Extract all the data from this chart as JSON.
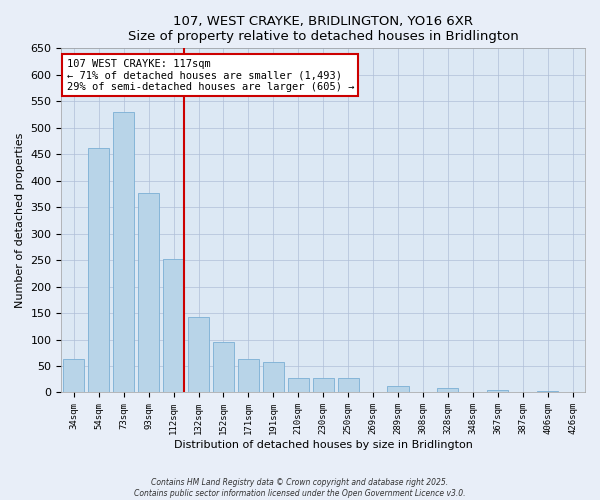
{
  "title": "107, WEST CRAYKE, BRIDLINGTON, YO16 6XR",
  "subtitle": "Size of property relative to detached houses in Bridlington",
  "xlabel": "Distribution of detached houses by size in Bridlington",
  "ylabel": "Number of detached properties",
  "bar_labels": [
    "34sqm",
    "54sqm",
    "73sqm",
    "93sqm",
    "112sqm",
    "132sqm",
    "152sqm",
    "171sqm",
    "191sqm",
    "210sqm",
    "230sqm",
    "250sqm",
    "269sqm",
    "289sqm",
    "308sqm",
    "328sqm",
    "348sqm",
    "367sqm",
    "387sqm",
    "406sqm",
    "426sqm"
  ],
  "bar_values": [
    63,
    462,
    530,
    376,
    252,
    143,
    95,
    64,
    58,
    27,
    27,
    27,
    0,
    12,
    0,
    8,
    0,
    5,
    0,
    3,
    0
  ],
  "bar_color": "#b8d4e8",
  "bar_edge_color": "#7bafd4",
  "vline_x_index": 4,
  "vline_color": "#cc0000",
  "annotation_title": "107 WEST CRAYKE: 117sqm",
  "annotation_line1": "← 71% of detached houses are smaller (1,493)",
  "annotation_line2": "29% of semi-detached houses are larger (605) →",
  "annotation_box_color": "#ffffff",
  "annotation_box_edge": "#cc0000",
  "ylim": [
    0,
    650
  ],
  "yticks": [
    0,
    50,
    100,
    150,
    200,
    250,
    300,
    350,
    400,
    450,
    500,
    550,
    600,
    650
  ],
  "footer1": "Contains HM Land Registry data © Crown copyright and database right 2025.",
  "footer2": "Contains public sector information licensed under the Open Government Licence v3.0.",
  "bg_color": "#e8eef8",
  "plot_bg_color": "#dce8f4",
  "grid_color": "#b0bfd8"
}
